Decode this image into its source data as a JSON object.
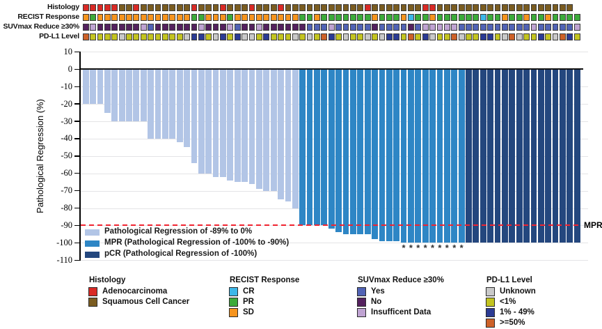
{
  "annotations": {
    "tracks": [
      {
        "label": "Histology",
        "codes": "RRRRRSSRSSSSSSSRSSSRSSSRSSSRSSSSSSSSSSSRSSSSSSSRRSSSSSSSSSSSSSSSSSSS",
        "palette": {
          "R": "#d92a25",
          "S": "#7a5c20"
        }
      },
      {
        "label": "RECIST Response",
        "codes": "OGOOOOOOOOOOOOOGGOOOGOOOOOOOOOGGOGGGGGGGOGGGOCGGOGGGGGGCGGOGGOGGOGGGG",
        "palette": {
          "O": "#f6941e",
          "G": "#3cab3a",
          "C": "#3db7e8"
        }
      },
      {
        "label": "SUVmax Reduce ≥30%",
        "codes": "NINNNNNNIYNNNNNNINNNIYNNINNNNNNYYYIYYYYYNYYYYNYIIIIIYYYYYYYYYYIYYYYYI",
        "palette": {
          "Y": "#5163b5",
          "N": "#54215e",
          "I": "#bfa3d2"
        }
      },
      {
        "label": "PD-L1 Level",
        "codes": "HLLLLULLLLLLLLUMMLUMLMUULMLLLULULHMLULLULUMMLHLMULLHULLMMLUHULLMLUHML",
        "palette": {
          "U": "#c9c9c9",
          "L": "#c3c420",
          "M": "#2b3b94",
          "H": "#cd6128"
        }
      }
    ]
  },
  "chart_data": {
    "type": "bar",
    "title": "",
    "xlabel": "",
    "ylabel": "Pathological Regression (%)",
    "ylim": [
      -110,
      10
    ],
    "yticks": [
      10,
      0,
      -10,
      -20,
      -30,
      -40,
      -50,
      -60,
      -70,
      -80,
      -90,
      -100,
      -110
    ],
    "grid": "horizontal",
    "values": [
      -20,
      -20,
      -20,
      -25,
      -30,
      -30,
      -30,
      -30,
      -30,
      -40,
      -40,
      -40,
      -40,
      -42,
      -45,
      -54,
      -60,
      -60,
      -62,
      -62,
      -64,
      -65,
      -65,
      -66,
      -69,
      -70,
      -70,
      -75,
      -76,
      -80,
      -90,
      -90,
      -90,
      -90,
      -92,
      -94,
      -95,
      -95,
      -95,
      -95,
      -98,
      -99,
      -99,
      -99,
      -100,
      -100,
      -100,
      -100,
      -100,
      -100,
      -100,
      -100,
      -100,
      -100,
      -100,
      -100,
      -100,
      -100,
      -100,
      -100,
      -100,
      -100,
      -100,
      -100,
      -100,
      -100,
      -100,
      -100,
      -100
    ],
    "groups": {
      "partial_count": 30,
      "mpr_count": 23,
      "pcr_count": 16
    },
    "series_colors": {
      "partial": "#b2c5e6",
      "mpr": "#2e86c5",
      "pcr": "#24477e"
    },
    "asterisk_columns": [
      45,
      46,
      47,
      48,
      49,
      50,
      51,
      52,
      53
    ],
    "asterisk_glyph": "*",
    "reference_line": {
      "value": -90,
      "label": "MPR",
      "color": "#f02330"
    },
    "legend": [
      {
        "key": "partial",
        "label": "Pathological Regression of -89% to 0%"
      },
      {
        "key": "mpr",
        "label": "MPR (Pathological Regression of -100% to -90%)"
      },
      {
        "key": "pcr",
        "label": "pCR (Pathological Regression of -100%)"
      }
    ]
  },
  "legends": [
    {
      "title": "Histology",
      "items": [
        {
          "label": "Adenocarcinoma",
          "color": "#d92a25"
        },
        {
          "label": "Squamous Cell Cancer",
          "color": "#7a5c20"
        }
      ]
    },
    {
      "title": "RECIST Response",
      "items": [
        {
          "label": "CR",
          "color": "#3db7e8"
        },
        {
          "label": "PR",
          "color": "#3cab3a"
        },
        {
          "label": "SD",
          "color": "#f6941e"
        }
      ]
    },
    {
      "title": "SUVmax Reduce ≥30%",
      "items": [
        {
          "label": "Yes",
          "color": "#5163b5"
        },
        {
          "label": "No",
          "color": "#54215e"
        },
        {
          "label": "Insufficent Data",
          "color": "#bfa3d2"
        }
      ]
    },
    {
      "title": "PD-L1 Level",
      "items": [
        {
          "label": "Unknown",
          "color": "#c9c9c9"
        },
        {
          "label": "<1%",
          "color": "#c3c420"
        },
        {
          "label": "1% - 49%",
          "color": "#2b3b94"
        },
        {
          "label": ">=50%",
          "color": "#cd6128"
        }
      ]
    }
  ]
}
